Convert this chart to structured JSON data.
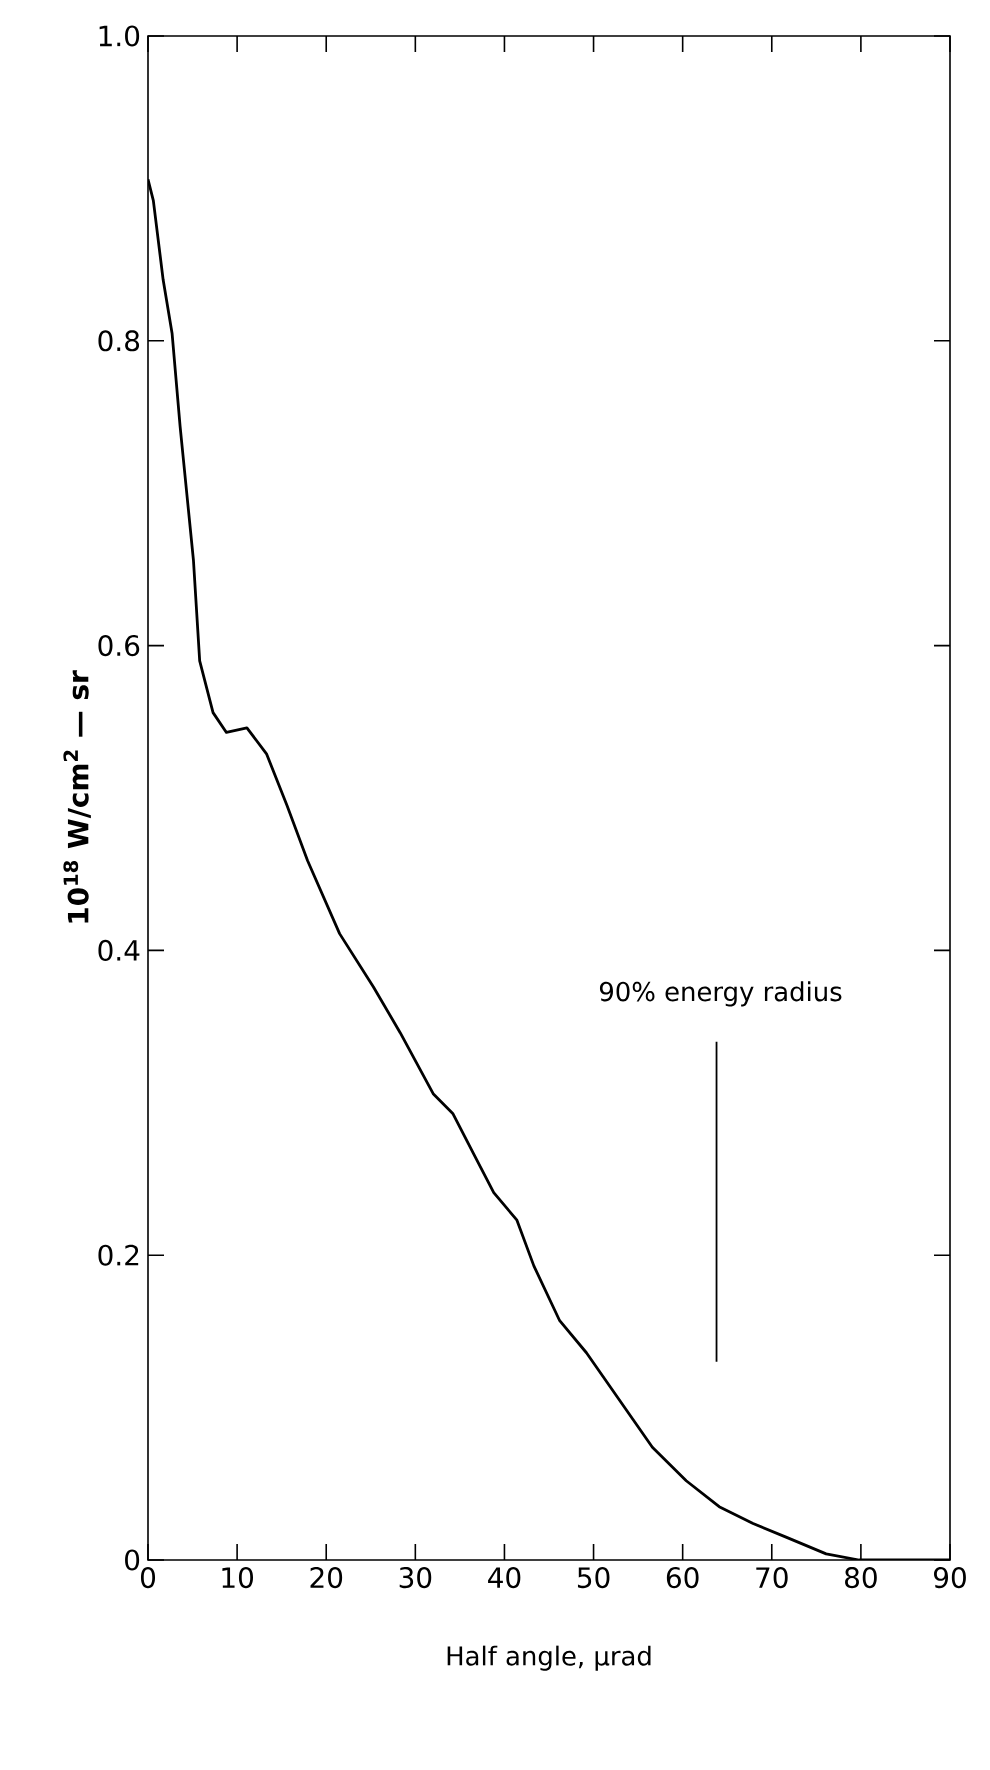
{
  "chart_data": {
    "type": "line",
    "xlabel": "Half angle, μrad",
    "ylabel": "10$^{18}$ W/cm$^{2}$ — sr",
    "x": [
      0,
      0.6,
      1.7,
      2.7,
      3.6,
      5.1,
      5.8,
      7.3,
      8.8,
      11.1,
      13.3,
      15.6,
      17.9,
      21.5,
      25.3,
      28.3,
      32.0,
      34.2,
      36.5,
      38.8,
      41.4,
      43.3,
      46.2,
      49.2,
      52.9,
      56.6,
      60.4,
      64.1,
      67.9,
      71.6,
      76.1,
      79.8,
      90
    ],
    "values": [
      0.906,
      0.892,
      0.84,
      0.805,
      0.744,
      0.656,
      0.59,
      0.556,
      0.543,
      0.546,
      0.529,
      0.495,
      0.459,
      0.411,
      0.376,
      0.346,
      0.306,
      0.293,
      0.267,
      0.241,
      0.223,
      0.193,
      0.157,
      0.136,
      0.105,
      0.074,
      0.052,
      0.035,
      0.024,
      0.015,
      0.004,
      0,
      0
    ],
    "color": "#000000",
    "xlim": [
      0,
      90
    ],
    "ylim": [
      0,
      1.0
    ],
    "xticks": [
      0,
      10,
      20,
      30,
      40,
      50,
      60,
      70,
      80,
      90
    ],
    "yticks": [
      0,
      0.2,
      0.4,
      0.6,
      0.8,
      {
        "value": 1.0,
        "label": "1.0"
      }
    ],
    "ref_lines": [
      {
        "axis": "x",
        "value": 63.8,
        "label": "90% energy radius"
      }
    ],
    "grid": false,
    "marker": "none",
    "line_style": "solid"
  }
}
